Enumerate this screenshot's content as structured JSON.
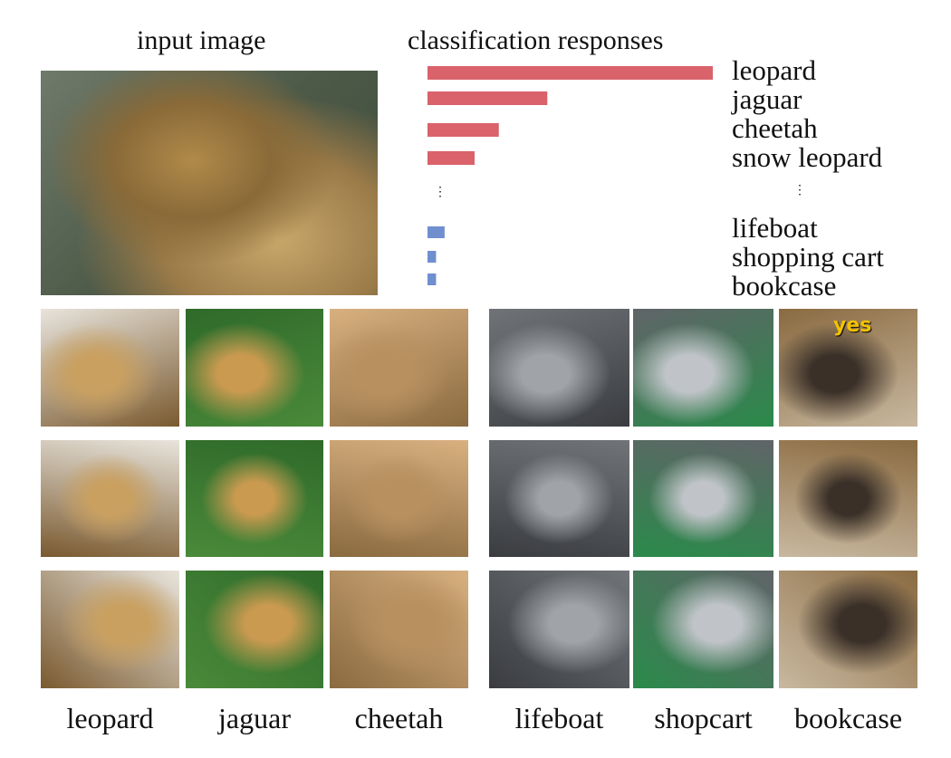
{
  "titles": {
    "input": "input image",
    "responses": "classification responses"
  },
  "ellipsis": "⋮",
  "chart_data": {
    "type": "bar",
    "orientation": "horizontal",
    "title": "classification responses",
    "categories": [
      "leopard",
      "jaguar",
      "cheetah",
      "snow leopard",
      "lifeboat",
      "shopping cart",
      "bookcase"
    ],
    "values": [
      1.0,
      0.42,
      0.25,
      0.165,
      0.06,
      0.03,
      0.03
    ],
    "colors": [
      "#d9626b",
      "#d9626b",
      "#d9626b",
      "#d9626b",
      "#6f8fcf",
      "#6f8fcf",
      "#6f8fcf"
    ],
    "axes_visible": false,
    "grid": false
  },
  "grid_captions": [
    "leopard",
    "jaguar",
    "cheetah",
    "lifeboat",
    "shopcart",
    "bookcase"
  ],
  "bookcase_sign": "yes"
}
